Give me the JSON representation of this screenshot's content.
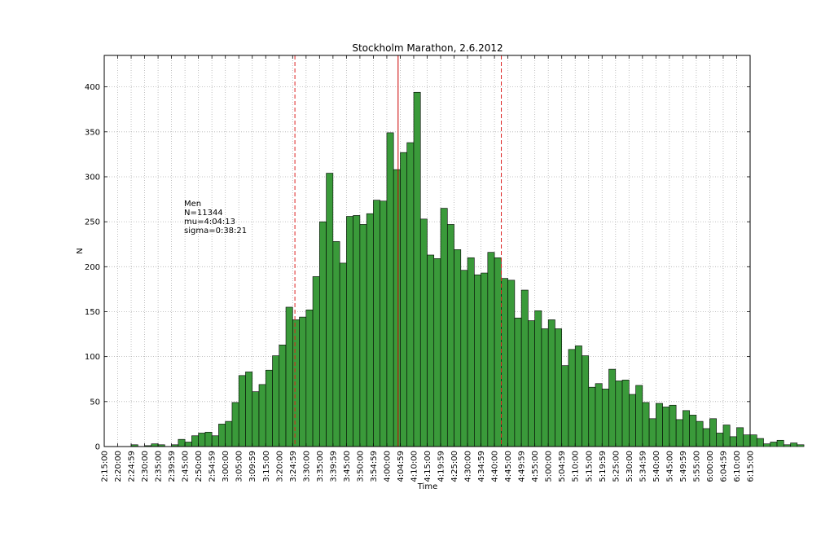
{
  "chart_data": {
    "type": "bar",
    "title": "Stockholm Marathon, 2.6.2012",
    "xlabel": "Time",
    "ylabel": "N",
    "ylim": [
      0,
      435
    ],
    "yticks": [
      0,
      50,
      100,
      150,
      200,
      250,
      300,
      350,
      400
    ],
    "xlim_minutes": [
      135,
      375
    ],
    "bin_width_minutes": 2.5,
    "grid": true,
    "bar_color": "#3a9a3a",
    "bar_edge_color": "#000000",
    "xtick_labels": [
      "2:15:00",
      "2:20:00",
      "2:24:59",
      "2:30:00",
      "2:35:00",
      "2:39:59",
      "2:45:00",
      "2:50:00",
      "2:54:59",
      "3:00:00",
      "3:05:00",
      "3:09:59",
      "3:15:00",
      "3:20:00",
      "3:24:59",
      "3:30:00",
      "3:35:00",
      "3:39:59",
      "3:45:00",
      "3:50:00",
      "3:54:59",
      "4:00:00",
      "4:04:59",
      "4:10:00",
      "4:15:00",
      "4:19:59",
      "4:25:00",
      "4:30:00",
      "4:34:59",
      "4:40:00",
      "4:45:00",
      "4:49:59",
      "4:55:00",
      "5:00:00",
      "5:04:59",
      "5:10:00",
      "5:15:00",
      "5:19:59",
      "5:25:00",
      "5:30:00",
      "5:34:59",
      "5:40:00",
      "5:45:00",
      "5:49:59",
      "5:55:00",
      "6:00:00",
      "6:04:59",
      "6:10:00",
      "6:15:00"
    ],
    "values": [
      0,
      0,
      0,
      0,
      2,
      0,
      1,
      3,
      2,
      0,
      2,
      8,
      5,
      12,
      15,
      16,
      12,
      25,
      28,
      49,
      79,
      83,
      61,
      69,
      85,
      101,
      113,
      155,
      141,
      144,
      152,
      189,
      250,
      304,
      228,
      204,
      256,
      257,
      247,
      259,
      274,
      273,
      349,
      308,
      327,
      338,
      394,
      253,
      213,
      209,
      265,
      247,
      219,
      196,
      210,
      191,
      193,
      216,
      210,
      187,
      185,
      143,
      174,
      140,
      151,
      131,
      141,
      131,
      90,
      108,
      112,
      101,
      66,
      70,
      64,
      86,
      73,
      74,
      58,
      68,
      49,
      31,
      48,
      44,
      46,
      30,
      40,
      35,
      28,
      20,
      31,
      15,
      24,
      11,
      21,
      13,
      13,
      9,
      3,
      5,
      7,
      2,
      4,
      2,
      0,
      0
    ],
    "reference_lines": [
      {
        "label": "mean",
        "x_minutes": 244.2,
        "style": "solid",
        "color": "#cc0000"
      },
      {
        "label": "mean - sigma",
        "x_minutes": 205.85,
        "style": "dashed",
        "color": "#dd2222"
      },
      {
        "label": "mean + sigma",
        "x_minutes": 282.55,
        "style": "dashed",
        "color": "#dd2222"
      }
    ],
    "annotation": [
      "Men",
      "N=11344",
      "mu=4:04:13",
      "sigma=0:38:21"
    ]
  }
}
